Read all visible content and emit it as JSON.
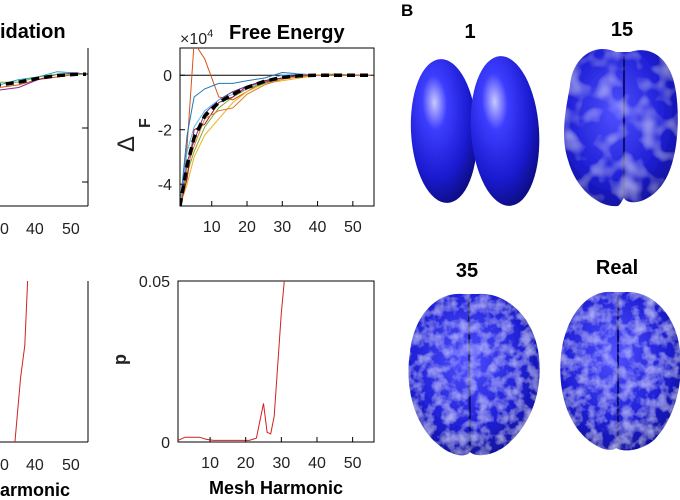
{
  "panel_b_label": "B",
  "colors": {
    "axis": "#000000",
    "brain": "#1f1fd6",
    "significance": "#d42020",
    "mean": "#000000"
  },
  "chart_data": [
    {
      "type": "line",
      "title": "Cross-Validation (cropped: idation)",
      "title_visible": "idation",
      "x_ticks_visible": [
        "0",
        "40",
        "50"
      ],
      "xlim": [
        0,
        56
      ],
      "ylim": [
        -5,
        1
      ],
      "grid": false,
      "series": [
        {
          "color": "#1fa4c9",
          "x": [
            0,
            10,
            20,
            30,
            40,
            50,
            55
          ],
          "y": [
            -0.5,
            -0.4,
            -0.2,
            -0.1,
            0.1,
            0.05,
            0
          ]
        },
        {
          "color": "#d8531a",
          "x": [
            0,
            10,
            20,
            30,
            40,
            50,
            55
          ],
          "y": [
            -0.6,
            -0.5,
            -0.4,
            -0.2,
            -0.1,
            0,
            0
          ]
        },
        {
          "color": "#7e2f8e",
          "x": [
            0,
            10,
            20,
            30,
            40,
            50,
            55
          ],
          "y": [
            -0.7,
            -0.6,
            -0.5,
            -0.2,
            0,
            0.05,
            0
          ]
        },
        {
          "color": "#77ac30",
          "x": [
            0,
            10,
            20,
            30,
            40,
            50,
            55
          ],
          "y": [
            -0.4,
            -0.3,
            -0.3,
            -0.1,
            0,
            0,
            0
          ]
        },
        {
          "name": "mean",
          "color": "#000000",
          "dashed": true,
          "x": [
            0,
            10,
            20,
            30,
            40,
            50,
            55
          ],
          "y": [
            -0.5,
            -0.4,
            -0.3,
            -0.15,
            -0.05,
            0,
            0
          ]
        }
      ]
    },
    {
      "type": "line",
      "title": "Free Energy",
      "multiplier_label": "×10",
      "multiplier_exp": "4",
      "ylabel_main": "Δ",
      "ylabel_sub": "F",
      "x_ticks": [
        "10",
        "20",
        "30",
        "40",
        "50"
      ],
      "y_ticks": [
        "0",
        "-2",
        "-4"
      ],
      "xlim": [
        1,
        56
      ],
      "ylim": [
        -4.8,
        1.0
      ],
      "grid": false,
      "series": [
        {
          "color": "#d8531a",
          "x": [
            1,
            3,
            5,
            8,
            12,
            16,
            20,
            25,
            30,
            35,
            40,
            45,
            50,
            55
          ],
          "y": [
            -4.8,
            -2.6,
            1.2,
            0.6,
            -0.8,
            -0.9,
            -0.6,
            -0.2,
            -0.1,
            0,
            0,
            0,
            0,
            0
          ]
        },
        {
          "color": "#1f77b4",
          "x": [
            1,
            3,
            5,
            8,
            12,
            16,
            20,
            25,
            30,
            35,
            40,
            45,
            50,
            55
          ],
          "y": [
            -4.8,
            -2.2,
            -0.8,
            -0.5,
            -0.3,
            -0.3,
            -0.2,
            -0.1,
            0.1,
            0.05,
            0,
            0,
            0,
            0
          ]
        },
        {
          "color": "#edb120",
          "x": [
            1,
            3,
            5,
            8,
            12,
            16,
            20,
            25,
            30,
            35,
            40,
            45,
            50,
            55
          ],
          "y": [
            -4.8,
            -4.0,
            -3.0,
            -2.2,
            -1.6,
            -1.0,
            -0.6,
            -0.3,
            -0.2,
            -0.1,
            0,
            0,
            0,
            0
          ]
        },
        {
          "color": "#7e2f8e",
          "x": [
            1,
            3,
            5,
            8,
            12,
            16,
            20,
            25,
            30,
            35,
            40,
            45,
            50,
            55
          ],
          "y": [
            -4.8,
            -3.2,
            -2.4,
            -1.4,
            -0.9,
            -0.6,
            -0.4,
            -0.25,
            -0.1,
            0,
            0,
            0,
            0,
            0
          ]
        },
        {
          "color": "#77ac30",
          "x": [
            1,
            3,
            5,
            8,
            12,
            16,
            20,
            25,
            30,
            35,
            40,
            45,
            50,
            55
          ],
          "y": [
            -4.8,
            -3.6,
            -2.8,
            -1.9,
            -1.2,
            -0.8,
            -0.5,
            -0.3,
            -0.1,
            0,
            0,
            0.05,
            0,
            0
          ]
        },
        {
          "color": "#4dbeee",
          "x": [
            1,
            3,
            5,
            8,
            12,
            16,
            20,
            25,
            30,
            35,
            40,
            45,
            50,
            55
          ],
          "y": [
            -4.8,
            -2.8,
            -1.9,
            -1.3,
            -0.9,
            -0.7,
            -0.5,
            -0.2,
            0,
            0.05,
            0,
            0,
            0,
            0
          ]
        },
        {
          "color": "#a2142f",
          "x": [
            1,
            3,
            5,
            8,
            12,
            16,
            20,
            25,
            30,
            35,
            40,
            45,
            50,
            55
          ],
          "y": [
            -4.8,
            -3.8,
            -2.0,
            -1.8,
            -1.0,
            -0.8,
            -0.4,
            -0.2,
            -0.1,
            0,
            0,
            0,
            0,
            0
          ]
        },
        {
          "color": "#e07b30",
          "x": [
            1,
            3,
            5,
            8,
            12,
            16,
            20,
            25,
            30,
            35,
            40,
            45,
            50,
            55
          ],
          "y": [
            -4.8,
            -3.4,
            -2.6,
            -1.6,
            -1.3,
            -1.2,
            -0.7,
            -0.35,
            -0.15,
            -0.05,
            0,
            0,
            0,
            0
          ]
        },
        {
          "name": "mean",
          "color": "#000000",
          "dashed": true,
          "x": [
            1,
            3,
            5,
            8,
            12,
            16,
            20,
            25,
            30,
            35,
            40,
            45,
            50,
            55
          ],
          "y": [
            -4.8,
            -3.3,
            -2.3,
            -1.5,
            -1.0,
            -0.7,
            -0.45,
            -0.22,
            -0.08,
            -0.02,
            0,
            0,
            0,
            0
          ]
        }
      ]
    },
    {
      "type": "line",
      "title": "",
      "x_ticks_visible": [
        "0",
        "40",
        "50"
      ],
      "xlabel_visible": "armonic",
      "xlim": [
        0,
        56
      ],
      "ylim": [
        0,
        0.05
      ],
      "series": [
        {
          "color": "#d42020",
          "x": [
            20,
            24,
            26,
            28
          ],
          "y": [
            -0.01,
            0.02,
            0.03,
            0.06
          ]
        }
      ]
    },
    {
      "type": "line",
      "title": "",
      "ylabel": "p",
      "xlabel": "Mesh Harmonic",
      "x_ticks": [
        "10",
        "20",
        "30",
        "40",
        "50"
      ],
      "y_ticks": [
        "0.05",
        "0"
      ],
      "xlim": [
        1,
        56
      ],
      "ylim": [
        0,
        0.05
      ],
      "grid": false,
      "series": [
        {
          "color": "#d42020",
          "x": [
            1,
            3,
            5,
            7,
            9,
            11,
            13,
            15,
            17,
            19,
            21,
            23,
            25,
            26,
            27,
            28,
            30,
            31
          ],
          "y": [
            0.0005,
            0.0015,
            0.0015,
            0.0015,
            0.0008,
            0.0005,
            0.0005,
            0.0005,
            0.0005,
            0.0005,
            0.0005,
            0.0012,
            0.012,
            0.003,
            0.0025,
            0.008,
            0.04,
            0.052
          ]
        }
      ]
    }
  ],
  "brains": [
    {
      "label": "1"
    },
    {
      "label": "15"
    },
    {
      "label": "35"
    },
    {
      "label": "Real"
    }
  ]
}
